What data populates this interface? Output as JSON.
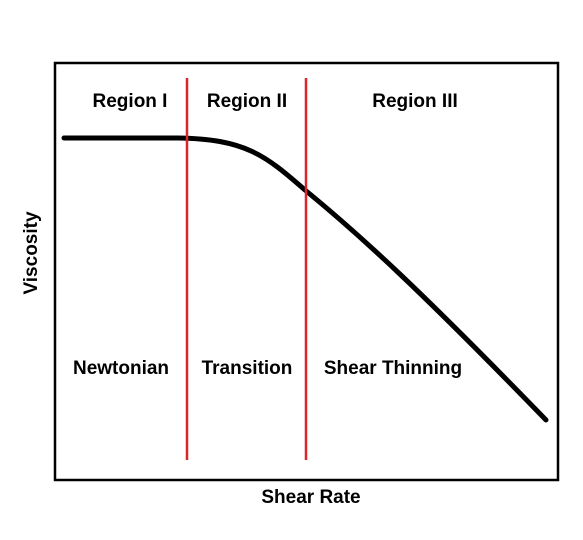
{
  "colors": {
    "frame": "#000000",
    "curve": "#000000",
    "divider": "#d9262b",
    "background": "#ffffff"
  },
  "axes": {
    "x_label": "Shear Rate",
    "y_label": "Viscosity"
  },
  "regions": [
    {
      "title": "Region I",
      "behavior": "Newtonian"
    },
    {
      "title": "Region II",
      "behavior": "Transition"
    },
    {
      "title": "Region III",
      "behavior": "Shear Thinning"
    }
  ]
}
